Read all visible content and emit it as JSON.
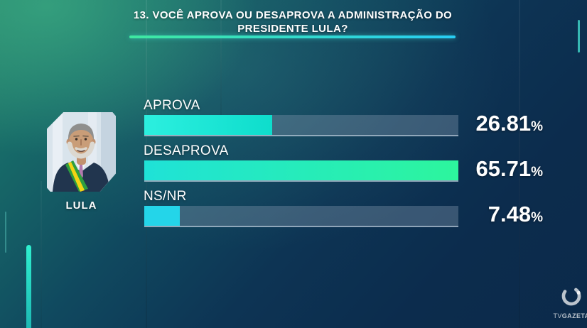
{
  "title": {
    "line1": "13. VOCÊ APROVA OU DESAPROVA A ADMINISTRAÇÃO DO",
    "line2": "PRESIDENTE LULA?"
  },
  "subject": {
    "name": "LULA"
  },
  "chart_data": {
    "type": "bar",
    "orientation": "horizontal",
    "title": "13. VOCÊ APROVA OU DESAPROVA A ADMINISTRAÇÃO DO PRESIDENTE LULA?",
    "subject": "LULA",
    "categories": [
      "APROVA",
      "DESAPROVA",
      "NS/NR"
    ],
    "values": [
      26.81,
      65.71,
      7.48
    ],
    "value_suffix": "%",
    "scale": "bars sized relative to max value (65.71 = full track width)",
    "legend": "none",
    "grid": false
  },
  "bars": [
    {
      "label": "APROVA",
      "value": 26.81,
      "display": "26.81",
      "suffix": "%",
      "fill_start": "#2cefdf",
      "fill_end": "#0eddcc"
    },
    {
      "label": "DESAPROVA",
      "value": 65.71,
      "display": "65.71",
      "suffix": "%",
      "fill_start": "#1fe2d7",
      "fill_end": "#2df59d"
    },
    {
      "label": "NS/NR",
      "value": 7.48,
      "display": "7.48",
      "suffix": "%",
      "fill_start": "#24d5e9",
      "fill_end": "#24d5e9"
    }
  ],
  "branding": {
    "tv": "TV",
    "gazeta": "GAZETA"
  },
  "colors": {
    "background_teal": "#27836c",
    "background_navy": "#0c2c4e",
    "accent_green": "#3fe9a0",
    "accent_cyan": "#27cdf4",
    "bar_track": "rgba(125,148,170,0.40)",
    "text": "#ffffff"
  }
}
